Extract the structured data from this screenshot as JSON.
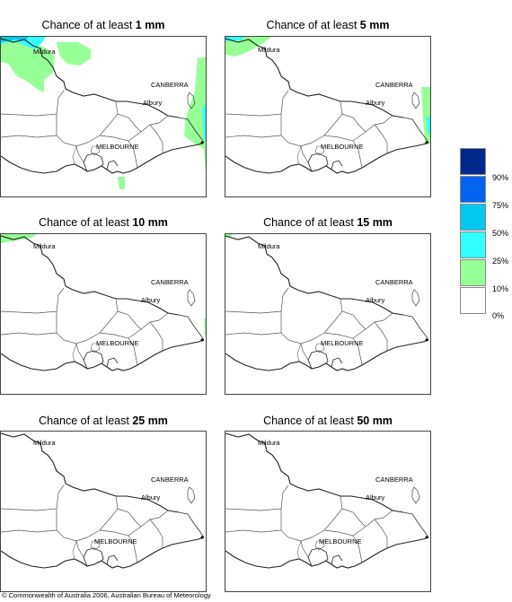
{
  "panels": [
    {
      "title_prefix": "Chance of at least ",
      "amount": "1 mm"
    },
    {
      "title_prefix": "Chance of at least ",
      "amount": "5 mm"
    },
    {
      "title_prefix": "Chance of at least ",
      "amount": "10 mm"
    },
    {
      "title_prefix": "Chance of at least ",
      "amount": "15 mm"
    },
    {
      "title_prefix": "Chance of at least ",
      "amount": "25 mm"
    },
    {
      "title_prefix": "Chance of at least ",
      "amount": "50 mm"
    }
  ],
  "place_labels": {
    "mildura": "Mildura",
    "canberra": "CANBERRA",
    "albury": "Albury",
    "melbourne": "MELBOURNE"
  },
  "legend": {
    "labels": [
      "90%",
      "75%",
      "50%",
      "25%",
      "10%",
      "0%"
    ],
    "colors": [
      "#00288c",
      "#0064f0",
      "#00c8f0",
      "#32ffff",
      "#96ff96",
      "#ffffff"
    ]
  },
  "copyright": "© Commonwealth of Australia 2006, Australian Bureau of Meteorology"
}
